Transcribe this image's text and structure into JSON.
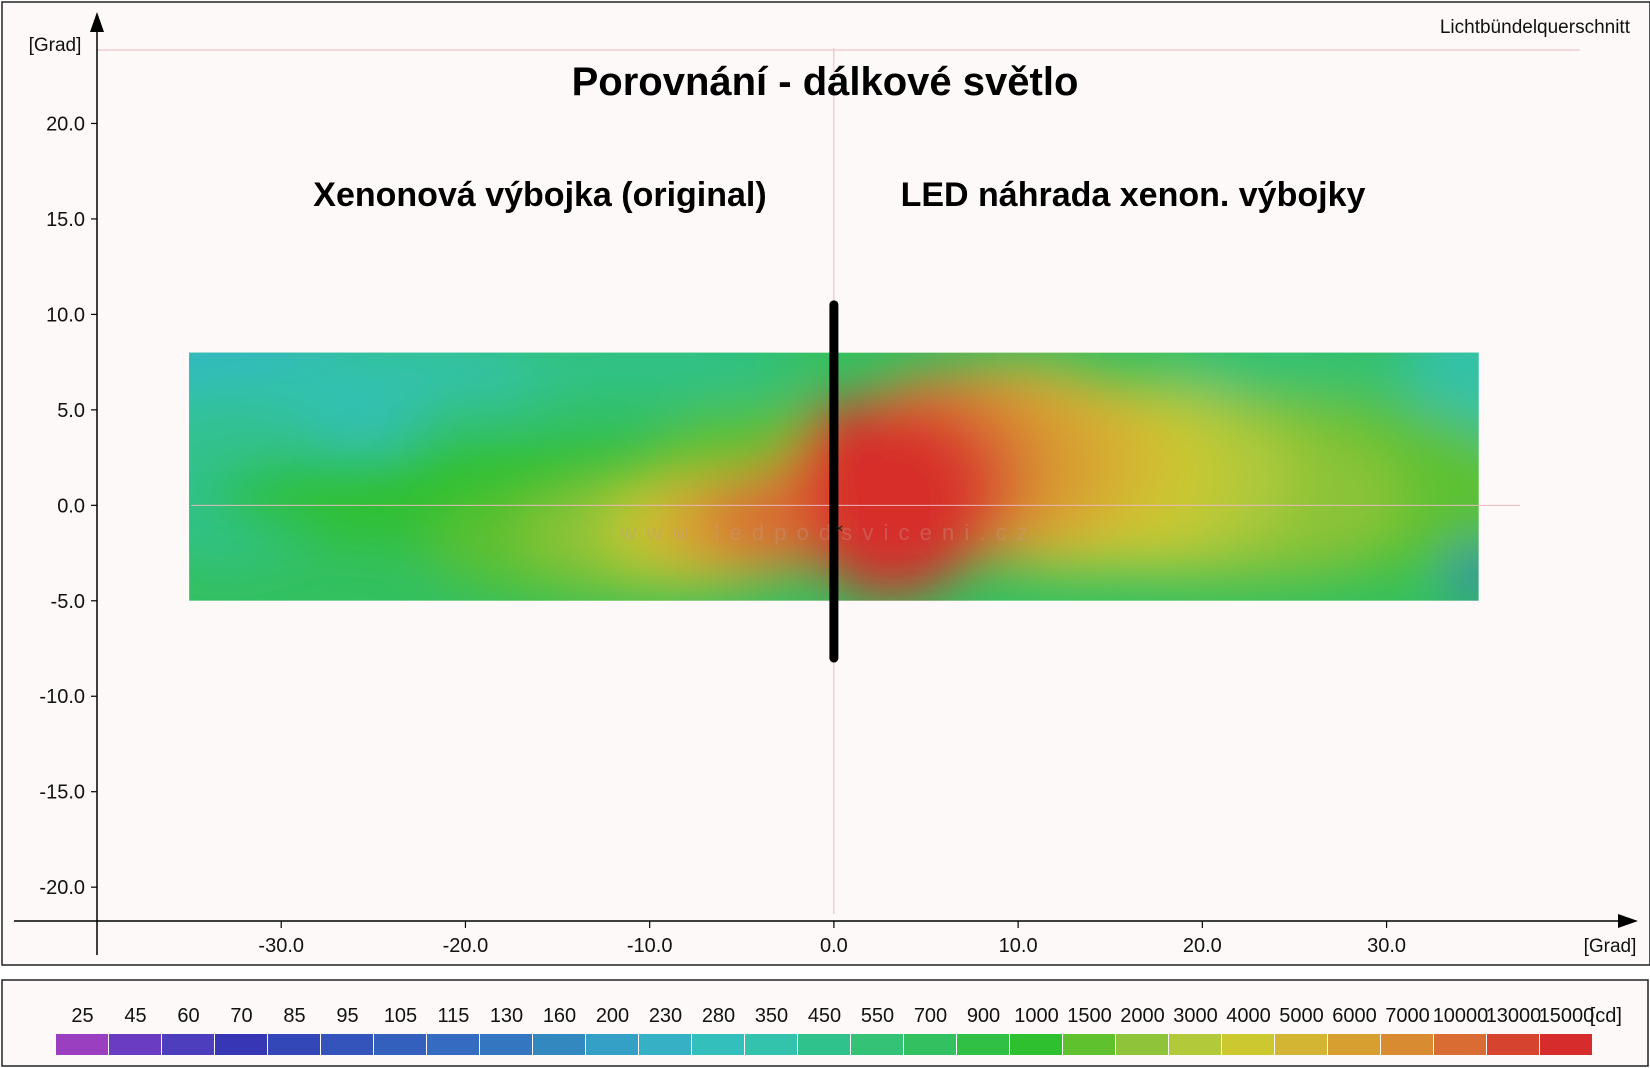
{
  "chart_data": {
    "type": "heatmap",
    "title": "Porovnání - dálkové světlo",
    "corner_label": "Lichtbündelquerschnitt",
    "subtitles": {
      "left": "Xenonová výbojka (original)",
      "right": "LED náhrada xenon. výbojky"
    },
    "watermark": "w w w . l e d p o d s v i c e n i . c z",
    "xlabel": "[Grad]",
    "ylabel": "[Grad]",
    "xlim": [
      -40,
      40.5
    ],
    "ylim": [
      -23.5,
      25
    ],
    "x_ticks": [
      "-30.0",
      "-20.0",
      "-10.0",
      "0.0",
      "10.0",
      "20.0",
      "30.0"
    ],
    "x_tick_values": [
      -30,
      -20,
      -10,
      0,
      10,
      20,
      30
    ],
    "y_ticks": [
      "20.0",
      "15.0",
      "10.0",
      "5.0",
      "0.0",
      "-5.0",
      "-10.0",
      "-15.0",
      "-20.0"
    ],
    "y_tick_values": [
      20,
      15,
      10,
      5,
      0,
      -5,
      -10,
      -15,
      -20
    ],
    "data_extent": {
      "x": [
        -35,
        35
      ],
      "y": [
        -5,
        8
      ]
    },
    "divider": {
      "x": 0,
      "y": [
        -8,
        10.5
      ]
    },
    "center_marker": {
      "x": 0.3,
      "y": -1.2
    },
    "scale_unit": "[cd]",
    "scale": [
      {
        "label": "25",
        "color": "#9a3fbf"
      },
      {
        "label": "45",
        "color": "#6a3cc2"
      },
      {
        "label": "60",
        "color": "#4c3ebc"
      },
      {
        "label": "70",
        "color": "#3737b6"
      },
      {
        "label": "85",
        "color": "#3347b9"
      },
      {
        "label": "95",
        "color": "#3554bb"
      },
      {
        "label": "105",
        "color": "#3460bd"
      },
      {
        "label": "115",
        "color": "#356bc0"
      },
      {
        "label": "130",
        "color": "#3477c0"
      },
      {
        "label": "160",
        "color": "#3488c0"
      },
      {
        "label": "200",
        "color": "#35a0c6"
      },
      {
        "label": "230",
        "color": "#35b0c4"
      },
      {
        "label": "280",
        "color": "#33c0bd"
      },
      {
        "label": "350",
        "color": "#33c2ab"
      },
      {
        "label": "450",
        "color": "#30c28d"
      },
      {
        "label": "550",
        "color": "#33c276"
      },
      {
        "label": "700",
        "color": "#33c060"
      },
      {
        "label": "900",
        "color": "#2fc045"
      },
      {
        "label": "1000",
        "color": "#2fc030"
      },
      {
        "label": "1500",
        "color": "#60c12f"
      },
      {
        "label": "2000",
        "color": "#8ec33a"
      },
      {
        "label": "3000",
        "color": "#b2c93a"
      },
      {
        "label": "4000",
        "color": "#cbc830"
      },
      {
        "label": "5000",
        "color": "#d4b533"
      },
      {
        "label": "6000",
        "color": "#d79f30"
      },
      {
        "label": "7000",
        "color": "#d88b31"
      },
      {
        "label": "10000",
        "color": "#d86c33"
      },
      {
        "label": "13000",
        "color": "#d64430"
      },
      {
        "label": "15000",
        "color": "#d72c2c"
      }
    ]
  }
}
